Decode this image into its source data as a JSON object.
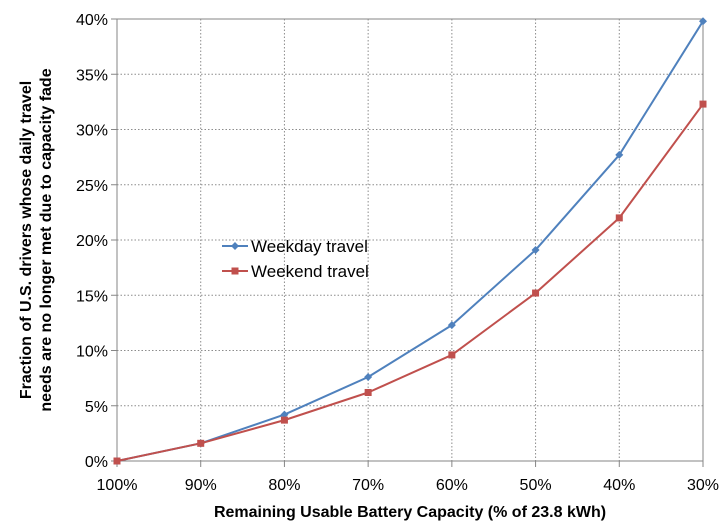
{
  "chart_data": {
    "type": "line",
    "categories": [
      "100%",
      "90%",
      "80%",
      "70%",
      "60%",
      "50%",
      "40%",
      "30%"
    ],
    "series": [
      {
        "name": "Weekday travel",
        "color": "#4f81bd",
        "marker": "diamond",
        "values": [
          0,
          1.6,
          4.2,
          7.6,
          12.3,
          19.1,
          27.7,
          39.8
        ]
      },
      {
        "name": "Weekend travel",
        "color": "#c0504d",
        "marker": "square",
        "values": [
          0,
          1.6,
          3.7,
          6.2,
          9.6,
          15.2,
          22.0,
          32.3
        ]
      }
    ],
    "ylim": [
      0,
      40
    ],
    "yticks": [
      "0%",
      "5%",
      "10%",
      "15%",
      "20%",
      "25%",
      "30%",
      "35%",
      "40%"
    ],
    "ylabel_lines": [
      "Fraction of U.S. drivers whose daily travel",
      "needs are no longer met due to capacity fade"
    ],
    "xlabel": "Remaining Usable Battery Capacity (% of 23.8 kWh)",
    "grid": "dotted",
    "legend_position": "center-left"
  }
}
